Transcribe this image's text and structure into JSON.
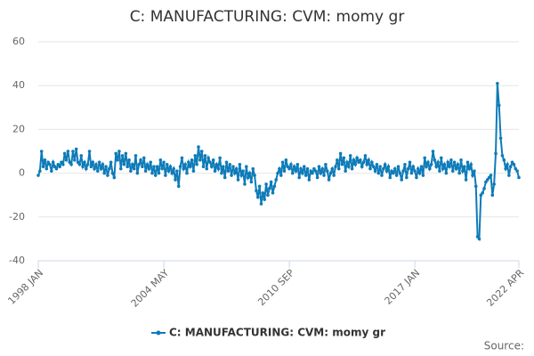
{
  "chart_data": {
    "type": "line",
    "title": "C: MANUFACTURING: CVM: momy gr",
    "source": "Source:",
    "categories": [
      "1998 JAN",
      null,
      null,
      null,
      null,
      null,
      null,
      null,
      null,
      null,
      null,
      null,
      null,
      null,
      null,
      null,
      null,
      null,
      null,
      null,
      null,
      null,
      null,
      null,
      null,
      null,
      null,
      null,
      null,
      null,
      null,
      null,
      null,
      null,
      null,
      null,
      null,
      null,
      null,
      null,
      null,
      null,
      null,
      null,
      null,
      null,
      null,
      null,
      null,
      null,
      null,
      null,
      null,
      null,
      null,
      null,
      null,
      null,
      null,
      null,
      null,
      null,
      null,
      null,
      null,
      null,
      null,
      null,
      null,
      null,
      null,
      null,
      null,
      null,
      null,
      null,
      "2004 MAY",
      null,
      null,
      null,
      null,
      null,
      null,
      null,
      null,
      null,
      null,
      null,
      null,
      null,
      null,
      null,
      null,
      null,
      null,
      null,
      null,
      null,
      null,
      null,
      null,
      null,
      null,
      null,
      null,
      null,
      null,
      null,
      null,
      null,
      null,
      null,
      null,
      null,
      null,
      null,
      null,
      null,
      null,
      null,
      null,
      null,
      null,
      null,
      null,
      null,
      null,
      null,
      null,
      null,
      null,
      null,
      null,
      null,
      null,
      null,
      null,
      null,
      null,
      null,
      null,
      null,
      null,
      null,
      null,
      null,
      null,
      null,
      null,
      null,
      null,
      null,
      "2010 SEP",
      null,
      null,
      null,
      null,
      null,
      null,
      null,
      null,
      null,
      null,
      null,
      null,
      null,
      null,
      null,
      null,
      null,
      null,
      null,
      null,
      null,
      null,
      null,
      null,
      null,
      null,
      null,
      null,
      null,
      null,
      null,
      null,
      null,
      null,
      null,
      null,
      null,
      null,
      null,
      null,
      null,
      null,
      null,
      null,
      null,
      null,
      null,
      null,
      null,
      null,
      null,
      null,
      null,
      null,
      null,
      null,
      null,
      null,
      null,
      null,
      null,
      null,
      null,
      null,
      null,
      null,
      null,
      null,
      null,
      null,
      null,
      null,
      null,
      null,
      null,
      "2017 JAN",
      null,
      null,
      null,
      null,
      null,
      null,
      null,
      null,
      null,
      null,
      null,
      null,
      null,
      null,
      null,
      null,
      null,
      null,
      null,
      null,
      null,
      null,
      null,
      null,
      null,
      null,
      null,
      null,
      null,
      null,
      null,
      null,
      null,
      null,
      null,
      null,
      null,
      null,
      null,
      null,
      null,
      null,
      null,
      null,
      null,
      null,
      null,
      null,
      null,
      null,
      null,
      null,
      null,
      null,
      null,
      null,
      null,
      null,
      null,
      null,
      null,
      null,
      "2022 APR"
    ],
    "series": [
      {
        "name": "C: MANUFACTURING: CVM: momy gr",
        "color": "#0e7bb8",
        "values": [
          -1,
          1,
          10,
          3,
          6,
          2,
          5,
          4,
          1,
          5,
          3,
          2,
          4,
          3,
          5,
          4,
          9,
          6,
          10,
          5,
          4,
          10,
          6,
          11,
          5,
          4,
          8,
          3,
          5,
          2,
          4,
          10,
          3,
          5,
          2,
          4,
          1,
          5,
          2,
          4,
          0,
          3,
          -1,
          2,
          5,
          0,
          -2,
          9,
          6,
          10,
          2,
          8,
          4,
          9,
          3,
          6,
          1,
          4,
          2,
          8,
          0,
          4,
          6,
          3,
          7,
          1,
          4,
          2,
          5,
          0,
          3,
          -1,
          3,
          0,
          6,
          2,
          5,
          -1,
          4,
          1,
          3,
          0,
          2,
          -3,
          1,
          -6,
          3,
          7,
          2,
          4,
          0,
          5,
          3,
          6,
          1,
          8,
          4,
          12,
          6,
          10,
          3,
          8,
          2,
          7,
          5,
          3,
          6,
          1,
          4,
          2,
          7,
          0,
          3,
          -2,
          5,
          1,
          4,
          -1,
          3,
          0,
          2,
          -3,
          4,
          -1,
          1,
          -5,
          3,
          -2,
          0,
          -4,
          2,
          -1,
          -8,
          -11,
          -6,
          -14,
          -9,
          -12,
          -5,
          -10,
          -7,
          -4,
          -9,
          -6,
          -3,
          0,
          2,
          -1,
          5,
          1,
          6,
          3,
          2,
          4,
          0,
          3,
          1,
          4,
          -2,
          2,
          0,
          3,
          -1,
          2,
          -3,
          1,
          0,
          2,
          1,
          -2,
          3,
          0,
          2,
          -1,
          4,
          1,
          -3,
          0,
          2,
          -1,
          3,
          6,
          2,
          9,
          4,
          7,
          1,
          5,
          3,
          8,
          2,
          6,
          4,
          7,
          5,
          6,
          3,
          5,
          8,
          4,
          6,
          2,
          5,
          3,
          1,
          4,
          0,
          3,
          -1,
          2,
          4,
          1,
          3,
          -2,
          1,
          0,
          2,
          -1,
          3,
          0,
          -3,
          1,
          4,
          -2,
          2,
          5,
          0,
          3,
          1,
          -2,
          2,
          0,
          3,
          -1,
          7,
          3,
          5,
          2,
          4,
          10,
          6,
          3,
          5,
          1,
          7,
          2,
          4,
          0,
          5,
          3,
          6,
          1,
          5,
          2,
          4,
          0,
          6,
          1,
          3,
          -3,
          5,
          2,
          4,
          -1,
          1,
          -6,
          -29,
          -30,
          -10,
          -9,
          -7,
          -4,
          -3,
          -2,
          -1,
          -10,
          -5,
          9,
          41,
          31,
          16,
          8,
          6,
          2,
          4,
          -1,
          3,
          5,
          4,
          2,
          1,
          -2
        ]
      }
    ],
    "ylim": [
      -40,
      60
    ],
    "yticks": [
      -40,
      -20,
      0,
      20,
      40,
      60
    ],
    "grid": true
  }
}
